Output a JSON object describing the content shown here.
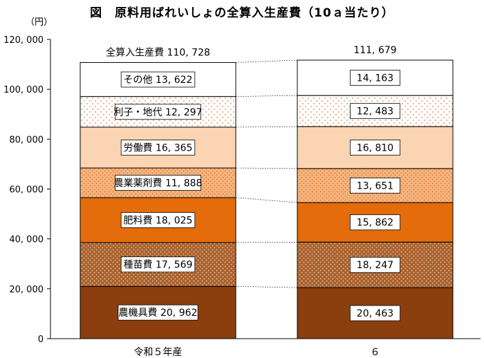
{
  "chart_data": {
    "type": "bar",
    "stacked": true,
    "title": "図　原料用ばれいしょの全算入生産費（10ａ当たり）",
    "unit_label": "（円）",
    "ylim": [
      0,
      120000
    ],
    "y_ticks": [
      0,
      20000,
      40000,
      60000,
      80000,
      100000,
      120000
    ],
    "y_tick_labels": [
      "0",
      "20, 000",
      "40, 000",
      "60, 000",
      "80, 000",
      "100, 000",
      "120, 000"
    ],
    "categories": [
      "令和５年産",
      "６"
    ],
    "totals": [
      110728,
      111679
    ],
    "total_labels": [
      "全算入生産費 110, 728",
      "111, 679"
    ],
    "series": [
      {
        "name": "農機具費",
        "values": [
          20962,
          20463
        ],
        "labels": [
          "農機具費 20, 962",
          "20, 463"
        ],
        "color": "#8B3E0E",
        "pattern": "solid"
      },
      {
        "name": "種苗費",
        "values": [
          17569,
          18247
        ],
        "labels": [
          "種苗費 17, 569",
          "18, 247"
        ],
        "color": "#A9622E",
        "pattern": "dots"
      },
      {
        "name": "肥料費",
        "values": [
          18025,
          15862
        ],
        "labels": [
          "肥料費 18, 025",
          "15, 862"
        ],
        "color": "#E46C0A",
        "pattern": "solid"
      },
      {
        "name": "農業薬剤費",
        "values": [
          11888,
          13651
        ],
        "labels": [
          "農業薬剤費 11, 888",
          "13, 651"
        ],
        "color": "#F3A66E",
        "pattern": "dots"
      },
      {
        "name": "労働費",
        "values": [
          16365,
          16810
        ],
        "labels": [
          "労働費 16, 365",
          "16, 810"
        ],
        "color": "#FBD4B4",
        "pattern": "solid"
      },
      {
        "name": "利子・地代",
        "values": [
          12297,
          12483
        ],
        "labels": [
          "利子・地代 12, 297",
          "12, 483"
        ],
        "color": "#FFFFFF",
        "pattern": "sparse-dots"
      },
      {
        "name": "その他",
        "values": [
          13622,
          14163
        ],
        "labels": [
          "その他 13, 622",
          "14, 163"
        ],
        "color": "#FFFFFF",
        "pattern": "none"
      }
    ],
    "grid": false,
    "legend": "none"
  }
}
